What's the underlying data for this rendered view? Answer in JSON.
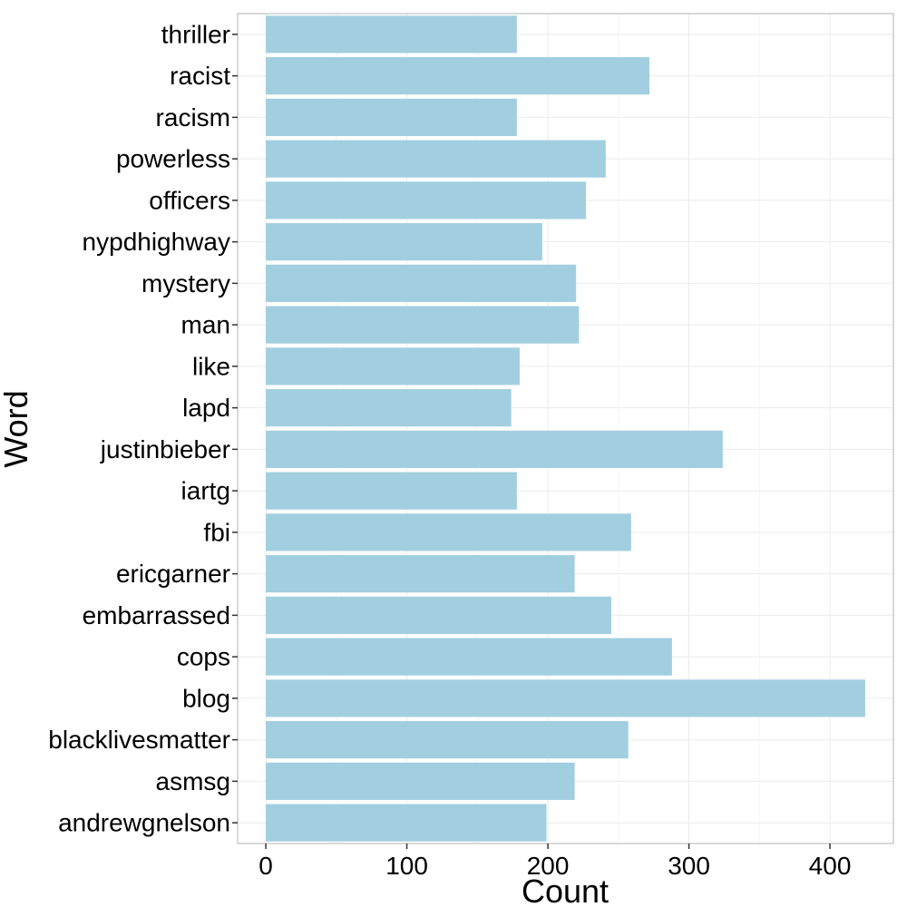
{
  "chart_data": {
    "type": "bar",
    "orientation": "horizontal",
    "xlabel": "Count",
    "ylabel": "Word",
    "xlim": [
      -20,
      445
    ],
    "x_ticks": [
      0,
      100,
      200,
      300,
      400
    ],
    "grid": true,
    "legend": "none",
    "bar_color": "#a1cfe0",
    "categories": [
      "thriller",
      "racist",
      "racism",
      "powerless",
      "officers",
      "nypdhighway",
      "mystery",
      "man",
      "like",
      "lapd",
      "justinbieber",
      "iartg",
      "fbi",
      "ericgarner",
      "embarrassed",
      "cops",
      "blog",
      "blacklivesmatter",
      "asmsg",
      "andrewgnelson"
    ],
    "values": [
      178,
      272,
      178,
      241,
      227,
      196,
      220,
      222,
      180,
      174,
      324,
      178,
      259,
      219,
      245,
      288,
      425,
      257,
      219,
      199
    ]
  }
}
